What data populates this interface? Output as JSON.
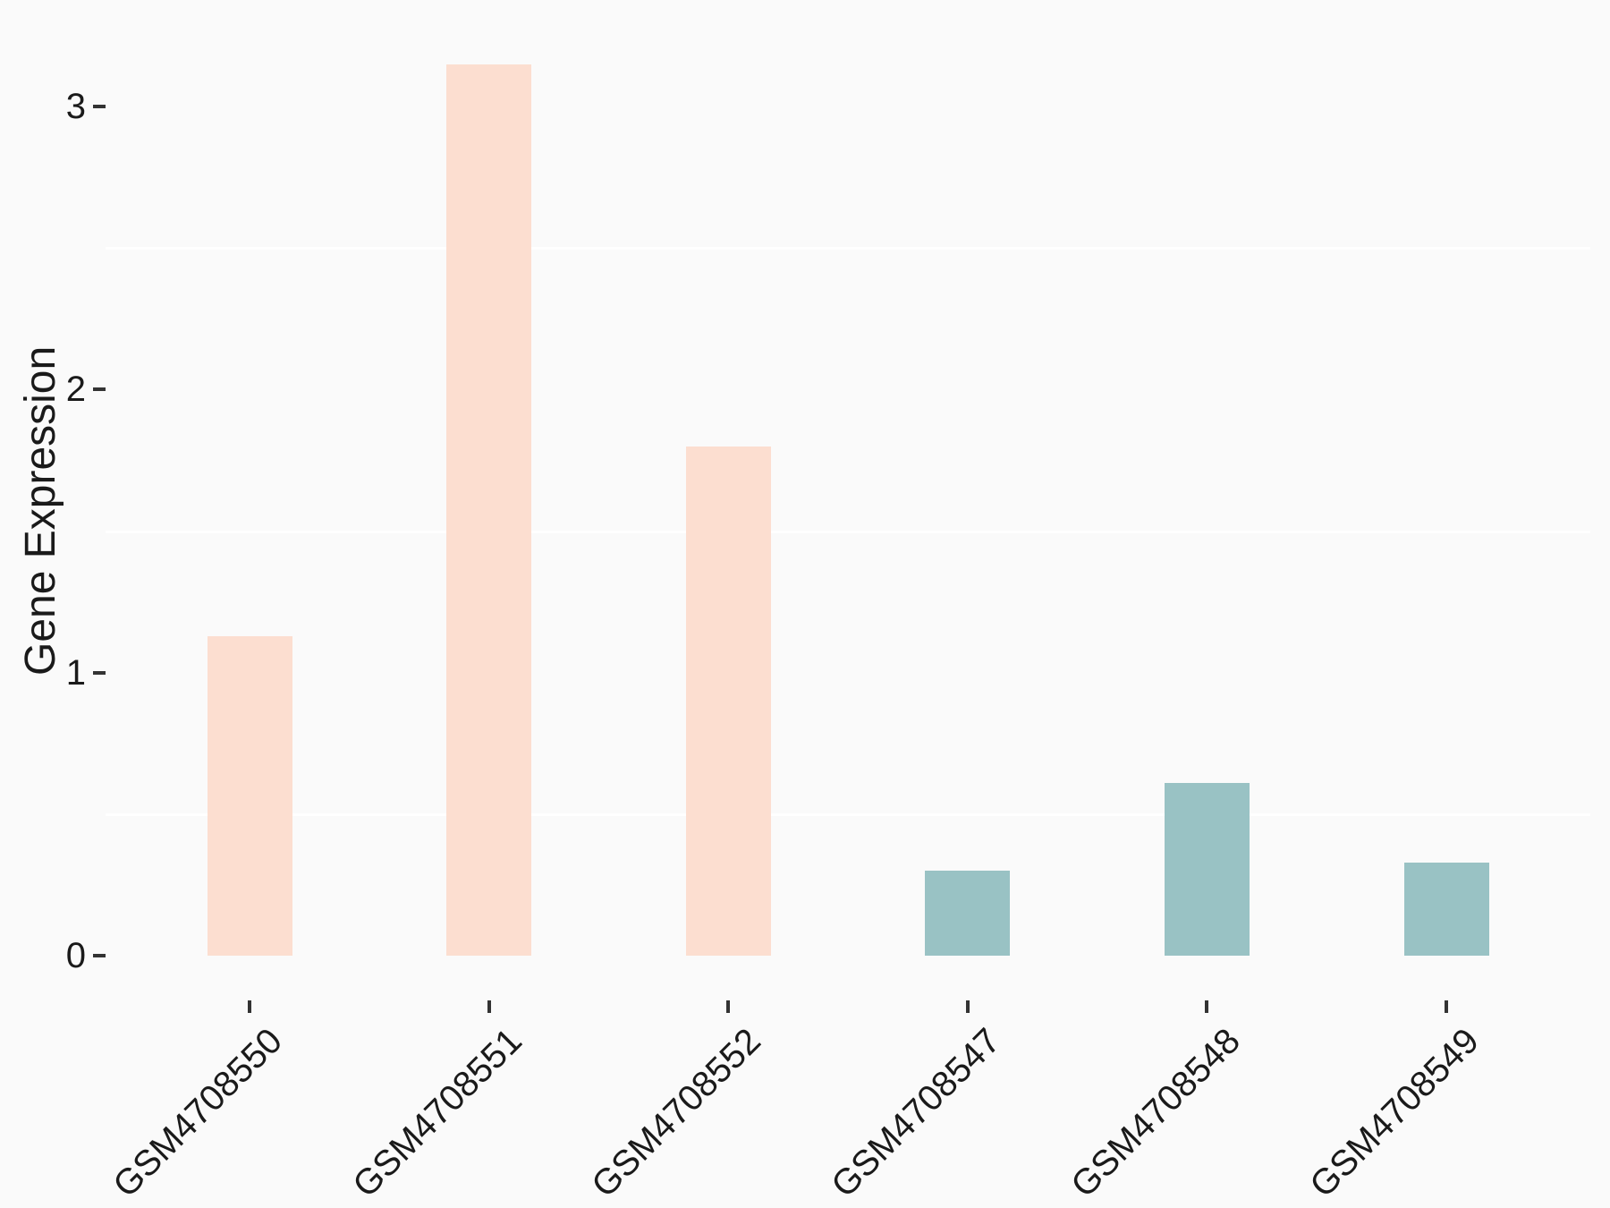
{
  "figure": {
    "background_color": "#fafafa"
  },
  "chart_data": {
    "type": "bar",
    "title": "",
    "xlabel": "",
    "ylabel": "Gene Expression",
    "categories": [
      "GSM4708550",
      "GSM4708551",
      "GSM4708552",
      "GSM4708547",
      "GSM4708548",
      "GSM4708549"
    ],
    "values": [
      1.13,
      3.15,
      1.8,
      0.3,
      0.61,
      0.33
    ],
    "bar_colors": [
      "#fcded0",
      "#fcded0",
      "#fcded0",
      "#99c2c4",
      "#99c2c4",
      "#99c2c4"
    ],
    "group_colors": {
      "peach": "#fcded0",
      "teal": "#99c2c4"
    },
    "yticks": [
      0,
      1,
      2,
      3
    ],
    "ylim": [
      0,
      3.38
    ],
    "minor_gridlines": [
      0.5,
      1.5,
      2.5
    ],
    "gridline_color": "#ffffff",
    "tick_mark_color": "#333333",
    "text_color": "#1a1a1a",
    "legend_position": "none",
    "x_label_rotation_deg": 45,
    "grid": "minor horizontal only"
  }
}
